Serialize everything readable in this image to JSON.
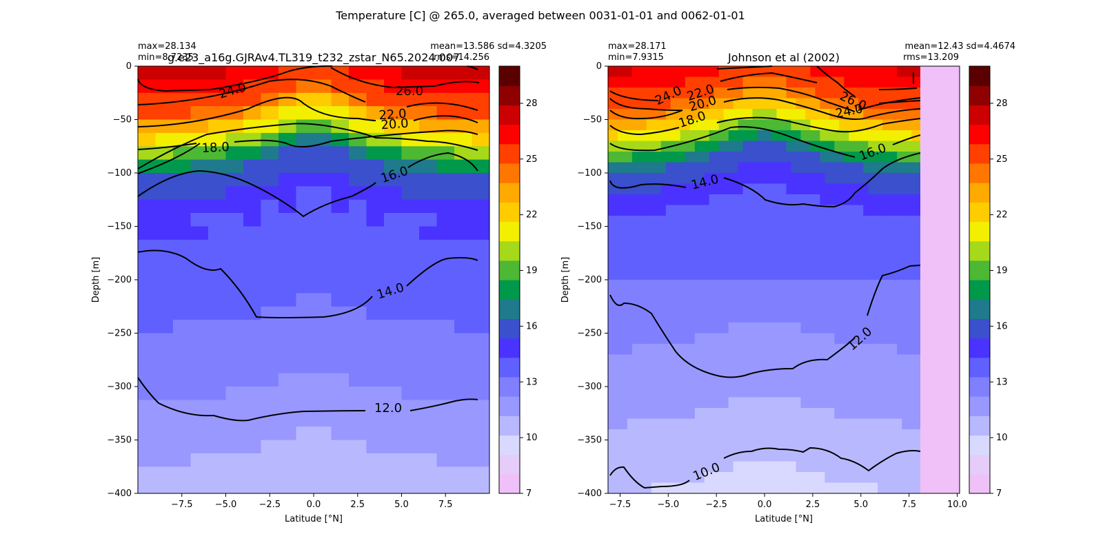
{
  "figure": {
    "suptitle": "Temperature [C] @ 265.0, averaged between 0031-01-01 and 0062-01-01"
  },
  "chart_data": [
    {
      "type": "heatmap",
      "title": "g.e23_a16g.GJRAv4.TL319_t232_zstar_N65.2024.007",
      "stats": {
        "max": "max=28.134",
        "min": "min=8.7235",
        "mean_sd": "mean=13.586 sd=4.3205",
        "rms": "rms=14.256"
      },
      "xlabel": "Latitude [°N]",
      "ylabel": "Depth [m]",
      "xlim": [
        -10,
        10
      ],
      "ylim": [
        -400,
        0
      ],
      "xticks": [
        "−7.5",
        "−5.0",
        "−2.5",
        "0.0",
        "2.5",
        "5.0",
        "7.5"
      ],
      "yticks": [
        "0",
        "−50",
        "−100",
        "−150",
        "−200",
        "−250",
        "−300",
        "−350",
        "−400"
      ],
      "contour_labels": [
        "24.0",
        "26.0",
        "22.0",
        "20.0",
        "18.0",
        "16.0",
        "14.0",
        "12.0"
      ],
      "colorbar_ticks": [
        "28",
        "25",
        "22",
        "19",
        "16",
        "13",
        "10",
        "7"
      ]
    },
    {
      "type": "heatmap",
      "title": "Johnson et al (2002)",
      "stats": {
        "max": "max=28.171",
        "min": "min=7.9315",
        "mean_sd": "mean=12.43 sd=4.4674",
        "rms": "rms=13.209"
      },
      "xlabel": "Latitude [°N]",
      "ylabel": "Depth [m]",
      "xlim": [
        -8.125,
        10.125
      ],
      "ylim": [
        -400,
        0
      ],
      "xticks": [
        "−7.5",
        "−5.0",
        "−2.5",
        "0.0",
        "2.5",
        "5.0",
        "7.5",
        "10.0"
      ],
      "yticks": [
        "0",
        "−50",
        "−100",
        "−150",
        "−200",
        "−250",
        "−300",
        "−350",
        "−400"
      ],
      "contour_labels": [
        "24.0",
        "22.0",
        "20.0",
        "18.0",
        "26.0",
        "24.0",
        "16.0",
        "14.0",
        "12.0",
        "10.0"
      ],
      "colorbar_ticks": [
        "28",
        "25",
        "22",
        "19",
        "16",
        "13",
        "10",
        "7"
      ]
    }
  ],
  "colormap": {
    "levels_min": 7,
    "levels_max": 30,
    "colors": [
      "#f0c0f8",
      "#e6ccf8",
      "#d9d9ff",
      "#b8b8ff",
      "#9898ff",
      "#8080ff",
      "#6060ff",
      "#4a33ff",
      "#3a50cc",
      "#1e7a8c",
      "#00994c",
      "#4db833",
      "#a5d91a",
      "#f2ef00",
      "#ffcc00",
      "#ffaa00",
      "#ff7700",
      "#ff4000",
      "#ff0000",
      "#cc0000",
      "#8f0000",
      "#5a0000"
    ]
  }
}
